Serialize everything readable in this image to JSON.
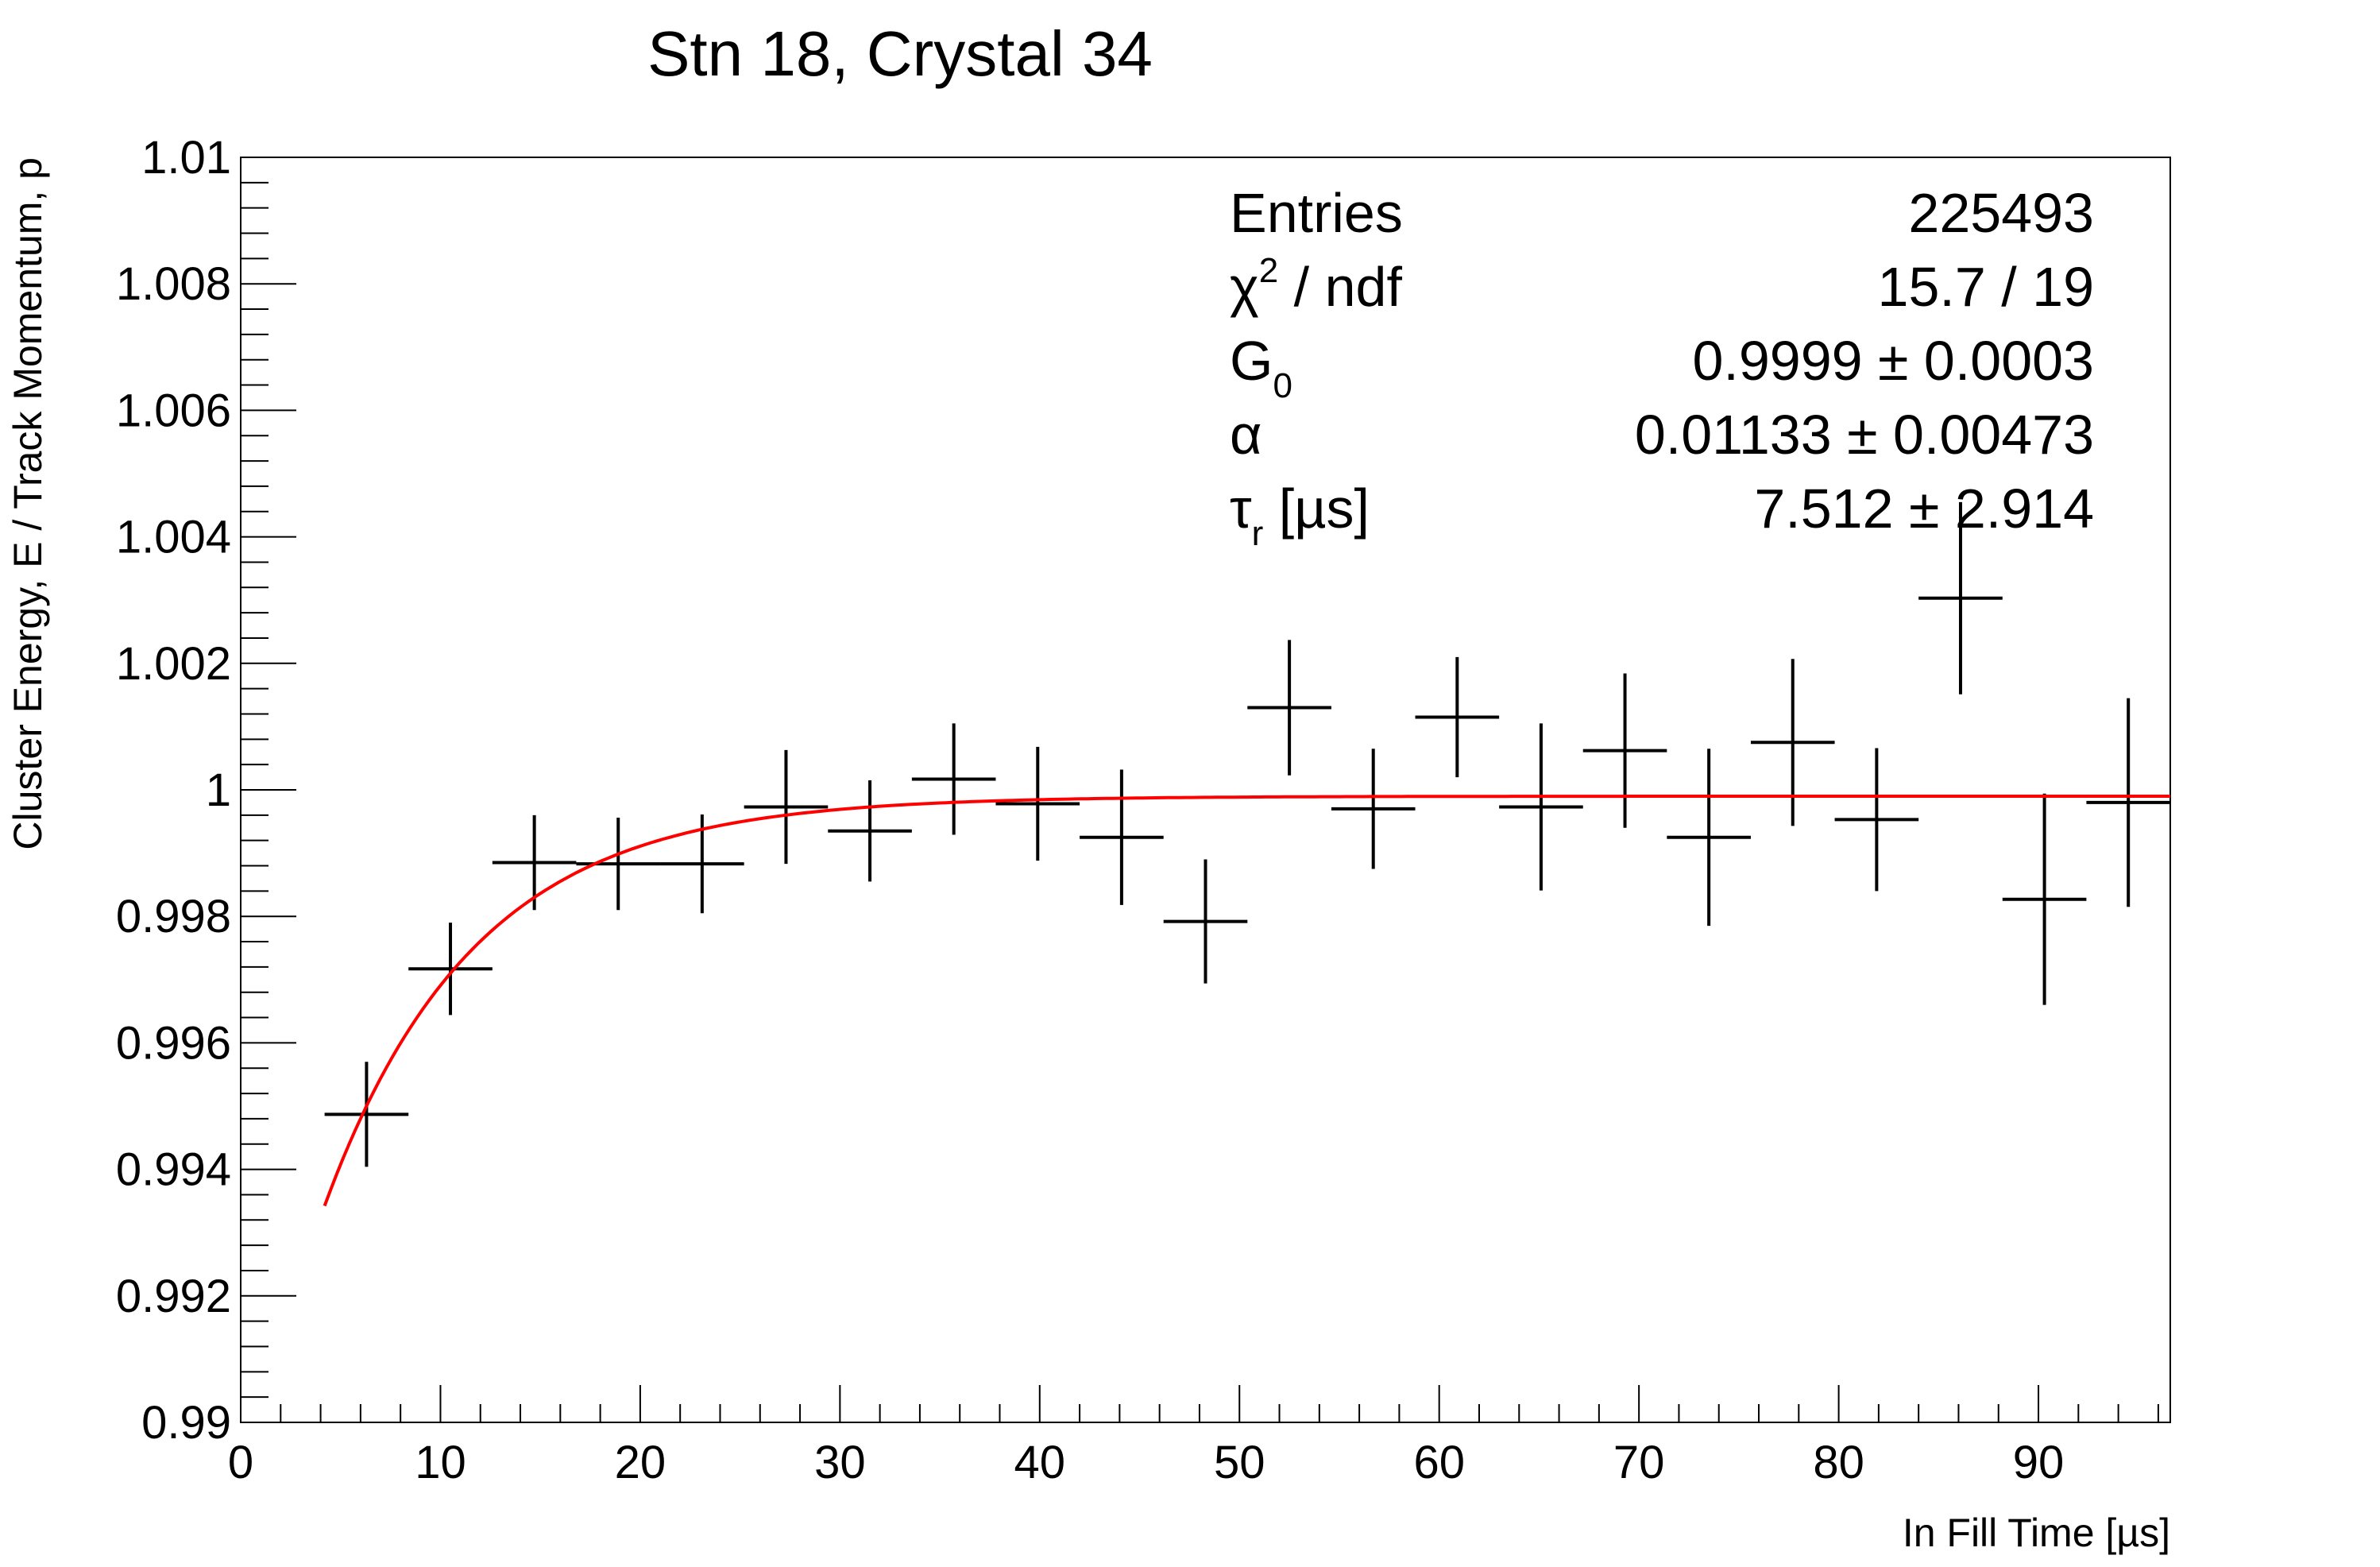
{
  "chart_data": {
    "type": "scatter",
    "title": "Stn 18, Crystal 34",
    "xlabel": "In Fill Time [µs]",
    "ylabel": "Cluster Energy, E / Track Momentum, p",
    "xlim": [
      0,
      96.6
    ],
    "ylim": [
      0.99,
      1.01
    ],
    "xticks": [
      0,
      10,
      20,
      30,
      40,
      50,
      60,
      70,
      80,
      90
    ],
    "xtick_labels": [
      "0",
      "10",
      "20",
      "30",
      "40",
      "50",
      "60",
      "70",
      "80",
      "90"
    ],
    "yticks": [
      0.99,
      0.992,
      0.994,
      0.996,
      0.998,
      1.0,
      1.002,
      1.004,
      1.006,
      1.008,
      1.01
    ],
    "ytick_labels": [
      "0.99",
      "0.992",
      "0.994",
      "0.996",
      "0.998",
      "1",
      "1.002",
      "1.004",
      "1.006",
      "1.008",
      "1.01"
    ],
    "grid": false,
    "bin_half_width": 2.1,
    "series": [
      {
        "color": "#000000",
        "points": [
          {
            "x": 6.3,
            "y": 0.99487,
            "err": 0.00083
          },
          {
            "x": 10.5,
            "y": 0.99717,
            "err": 0.00073
          },
          {
            "x": 14.7,
            "y": 0.99885,
            "err": 0.00075
          },
          {
            "x": 18.9,
            "y": 0.99883,
            "err": 0.00073
          },
          {
            "x": 23.1,
            "y": 0.99883,
            "err": 0.00078
          },
          {
            "x": 27.3,
            "y": 0.99973,
            "err": 0.0009
          },
          {
            "x": 31.5,
            "y": 0.99935,
            "err": 0.0008
          },
          {
            "x": 35.7,
            "y": 1.00017,
            "err": 0.00088
          },
          {
            "x": 39.9,
            "y": 0.99978,
            "err": 0.0009
          },
          {
            "x": 44.1,
            "y": 0.99925,
            "err": 0.00107
          },
          {
            "x": 48.3,
            "y": 0.99792,
            "err": 0.00098
          },
          {
            "x": 52.5,
            "y": 1.0013,
            "err": 0.00107
          },
          {
            "x": 56.7,
            "y": 0.9997,
            "err": 0.00095
          },
          {
            "x": 60.9,
            "y": 1.00115,
            "err": 0.00095
          },
          {
            "x": 65.1,
            "y": 0.99973,
            "err": 0.00132
          },
          {
            "x": 69.3,
            "y": 1.00062,
            "err": 0.00122
          },
          {
            "x": 73.5,
            "y": 0.99925,
            "err": 0.0014
          },
          {
            "x": 77.7,
            "y": 1.00075,
            "err": 0.00132
          },
          {
            "x": 81.9,
            "y": 0.99953,
            "err": 0.00113
          },
          {
            "x": 86.1,
            "y": 1.00303,
            "err": 0.00152
          },
          {
            "x": 90.3,
            "y": 0.99827,
            "err": 0.00167
          },
          {
            "x": 94.5,
            "y": 0.9998,
            "err": 0.00165
          }
        ]
      }
    ],
    "fit": {
      "color": "#ff0000",
      "x_range": [
        4.2,
        96.6
      ],
      "G0": 0.9999,
      "alpha": 0.01133,
      "tau_r": 7.512
    },
    "stats_box": {
      "placement": "top-right",
      "rows": [
        {
          "label": "Entries",
          "value": "225493"
        },
        {
          "label_main": "χ",
          "label_sup": "2",
          "label_rest": " / ndf",
          "value": "15.7 / 19"
        },
        {
          "label_main": "G",
          "label_sub": "0",
          "value": "0.9999 ± 0.0003"
        },
        {
          "label": "α",
          "value": "0.01133 ± 0.00473"
        },
        {
          "label_main": "τ",
          "label_sub": "r",
          "label_rest": " [µs]",
          "value": "7.512 ± 2.914"
        }
      ]
    }
  }
}
